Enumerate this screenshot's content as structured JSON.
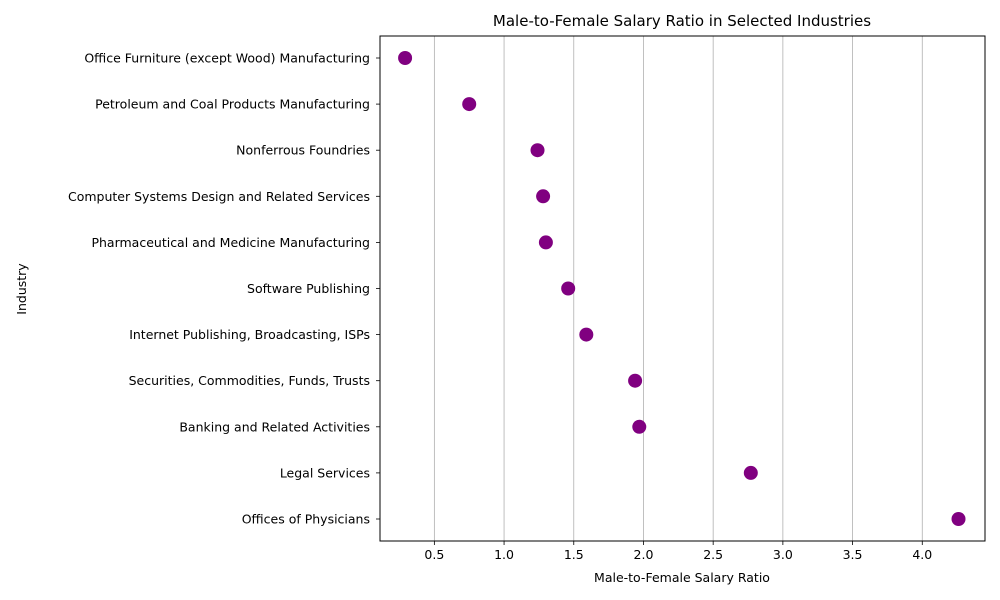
{
  "chart_data": {
    "type": "scatter",
    "title": "Male-to-Female Salary Ratio in Selected Industries",
    "xlabel": "Male-to-Female Salary Ratio",
    "ylabel": "Industry",
    "xlim": [
      0.11,
      4.45
    ],
    "xticks": [
      0.5,
      1.0,
      1.5,
      2.0,
      2.5,
      3.0,
      3.5,
      4.0
    ],
    "xtick_labels": [
      "0.5",
      "1.0",
      "1.5",
      "2.0",
      "2.5",
      "3.0",
      "3.5",
      "4.0"
    ],
    "grid": "x",
    "marker_color": "#800080",
    "points": [
      {
        "industry": "Office Furniture (except Wood) Manufacturing",
        "ratio": 0.29
      },
      {
        "industry": "Petroleum and Coal Products Manufacturing",
        "ratio": 0.75
      },
      {
        "industry": "Nonferrous Foundries",
        "ratio": 1.24
      },
      {
        "industry": "Computer Systems Design and Related Services",
        "ratio": 1.28
      },
      {
        "industry": "Pharmaceutical and Medicine Manufacturing",
        "ratio": 1.3
      },
      {
        "industry": "Software Publishing",
        "ratio": 1.46
      },
      {
        "industry": "Internet Publishing, Broadcasting, ISPs",
        "ratio": 1.59
      },
      {
        "industry": "Securities, Commodities, Funds, Trusts",
        "ratio": 1.94
      },
      {
        "industry": "Banking and Related Activities",
        "ratio": 1.97
      },
      {
        "industry": "Legal Services",
        "ratio": 2.77
      },
      {
        "industry": "Offices of Physicians",
        "ratio": 4.26
      }
    ]
  }
}
